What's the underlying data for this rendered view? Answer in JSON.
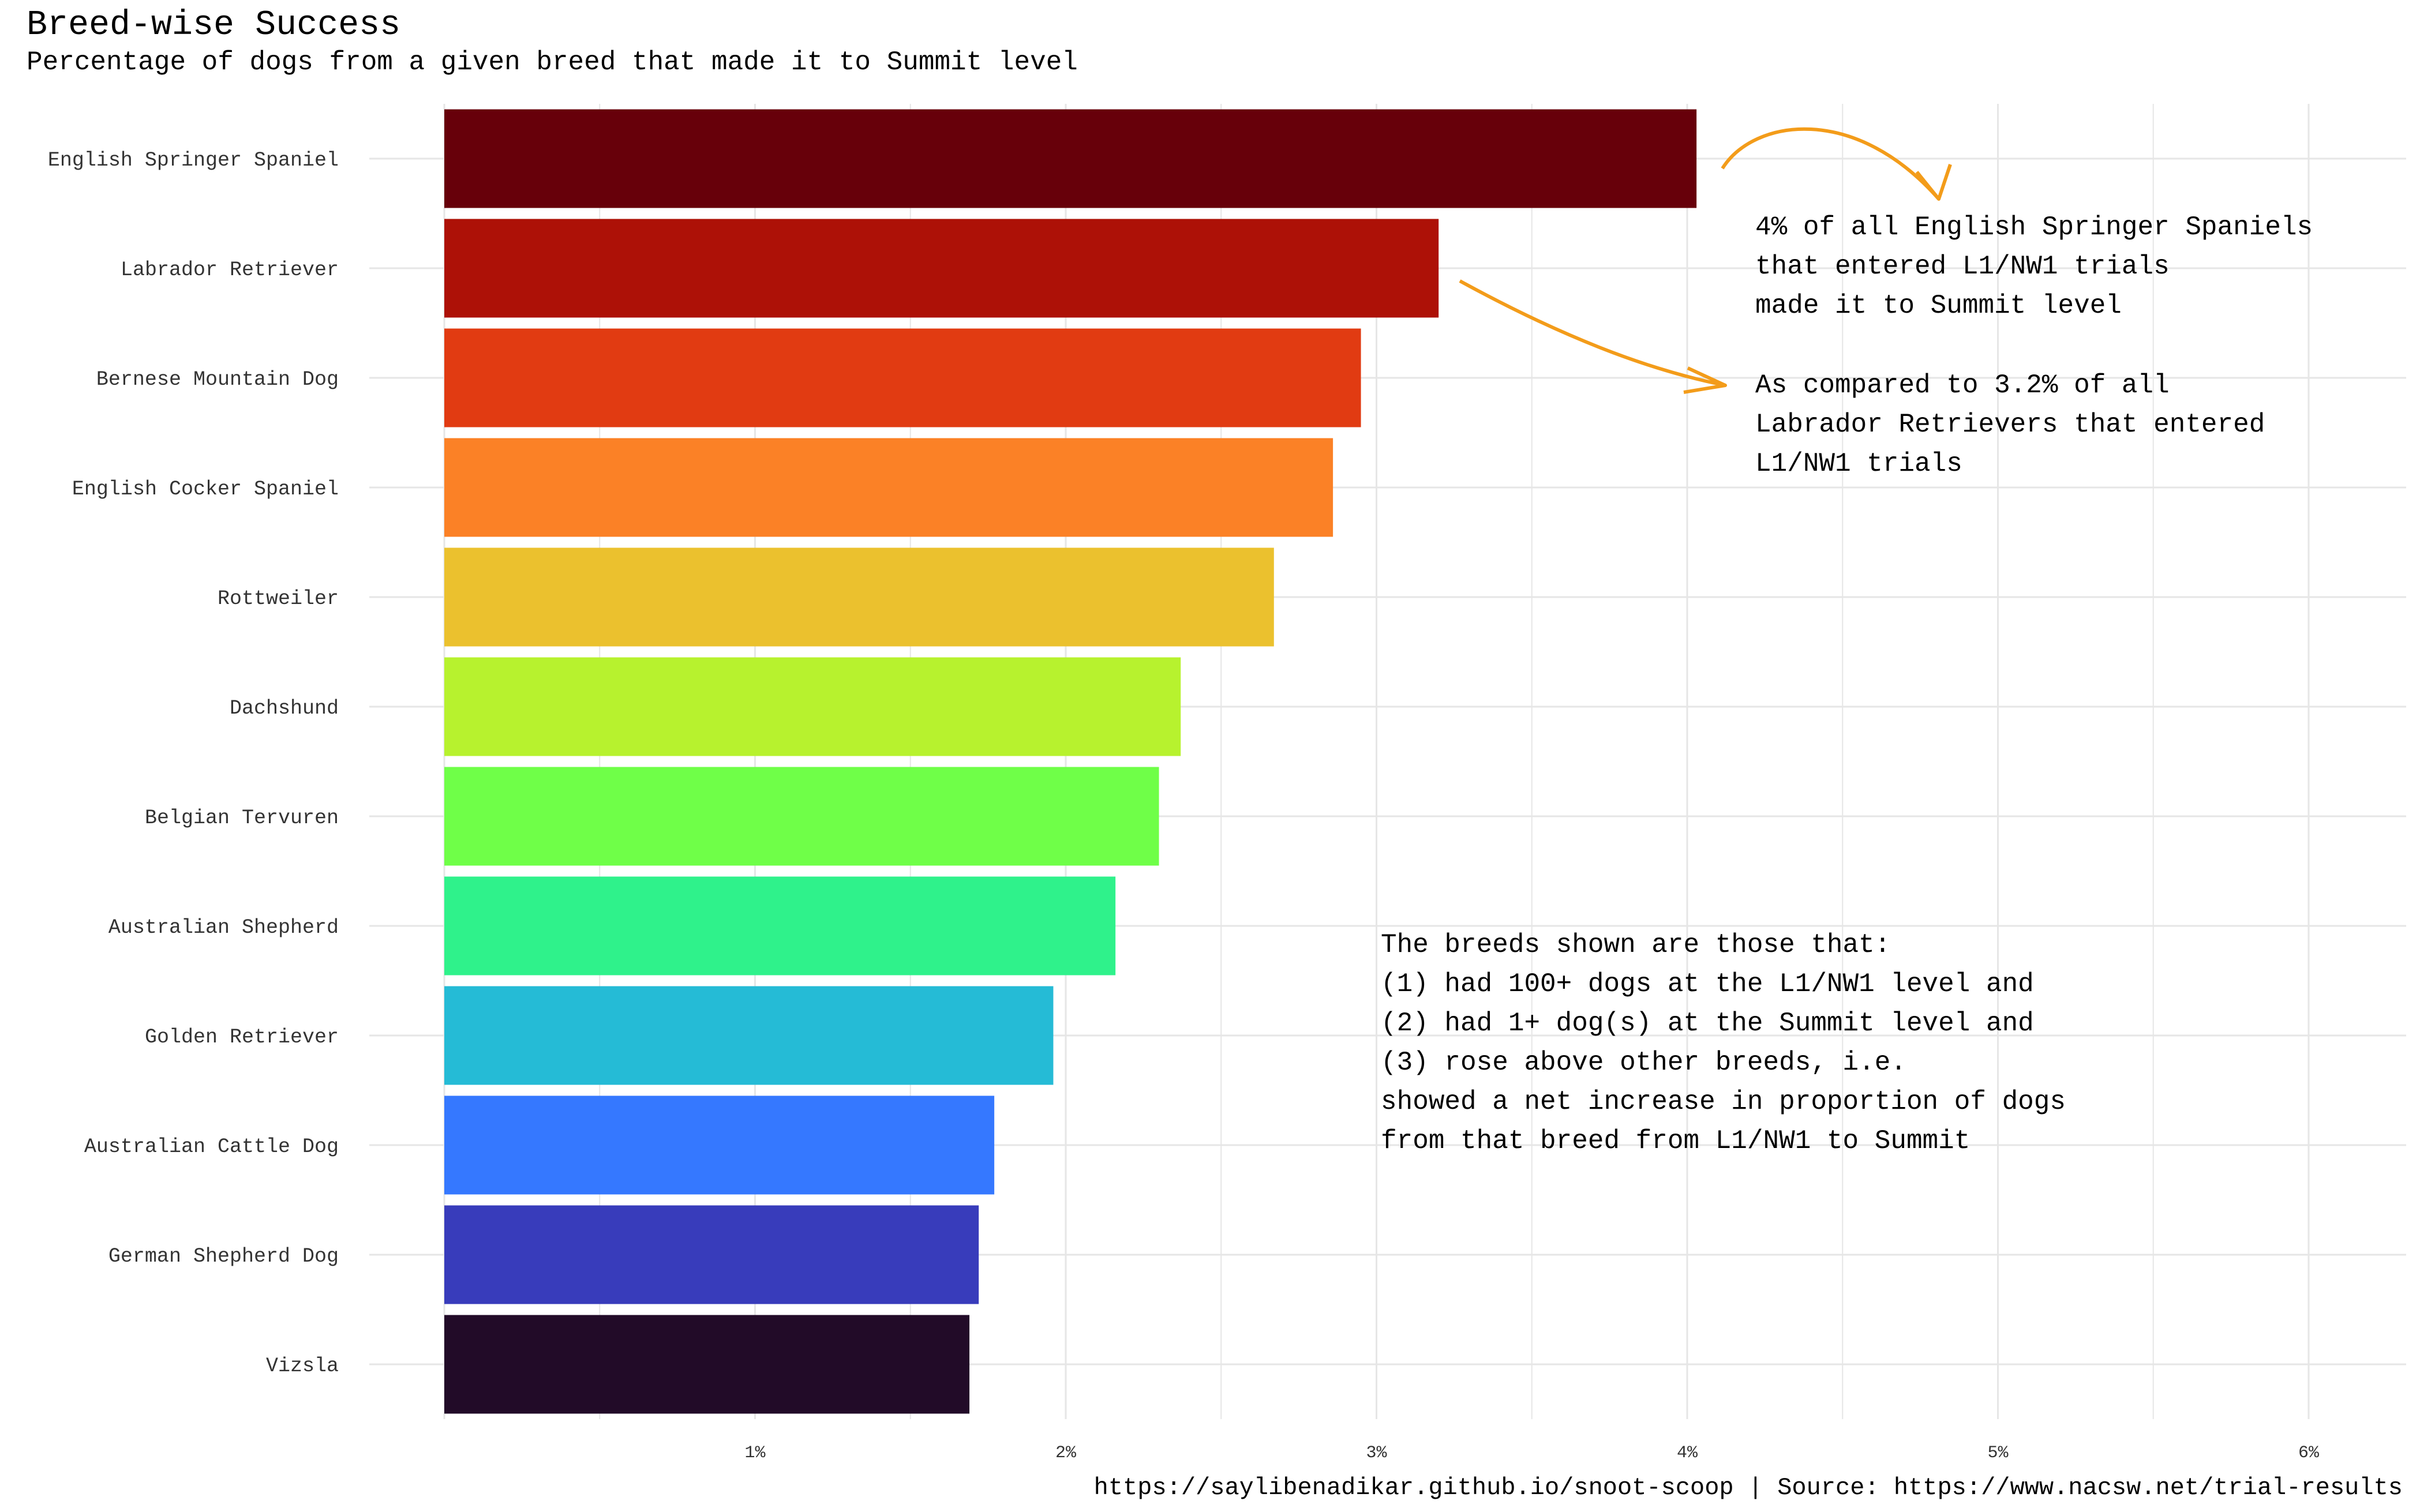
{
  "chart_data": {
    "type": "bar",
    "orientation": "horizontal",
    "title": "Breed-wise Success",
    "subtitle": "Percentage of dogs from a given breed that made it to Summit level",
    "caption": "https://saylibenadikar.github.io/snoot-scoop | Source: https://www.nacsw.net/trial-results",
    "categories": [
      "English Springer Spaniel",
      "Labrador Retriever",
      "Bernese Mountain Dog",
      "English Cocker Spaniel",
      "Rottweiler",
      "Dachshund",
      "Belgian Tervuren",
      "Australian Shepherd",
      "Golden Retriever",
      "Australian Cattle Dog",
      "German Shepherd Dog",
      "Vizsla"
    ],
    "values": [
      4.03,
      3.2,
      2.95,
      2.86,
      2.67,
      2.37,
      2.3,
      2.16,
      1.96,
      1.77,
      1.72,
      1.69
    ],
    "colors": [
      "#67000a",
      "#ad1107",
      "#e13b12",
      "#fb8126",
      "#ebc12e",
      "#b7f22e",
      "#6fff48",
      "#2ff28b",
      "#25bbd6",
      "#3578ff",
      "#383cbb",
      "#220b28"
    ],
    "xlim": [
      0,
      6.3
    ],
    "xticks": [
      1,
      2,
      3,
      4,
      5,
      6
    ],
    "xtick_labels": [
      "1%",
      "2%",
      "3%",
      "4%",
      "5%",
      "6%"
    ],
    "grid": true,
    "annotations": [
      "4% of all English Springer Spaniels",
      "that entered L1/NW1 trials",
      "made it to Summit level",
      "As compared to 3.2% of all",
      "Labrador Retrievers that entered",
      "L1/NW1 trials"
    ],
    "note": [
      "The breeds shown are those that:",
      "(1) had 100+ dogs at the L1/NW1 level and",
      "(2) had 1+ dog(s) at the Summit level and",
      "(3) rose above other breeds, i.e.",
      "    showed a net increase in proportion of dogs",
      "    from that breed from L1/NW1 to Summit"
    ],
    "arrow_color": "#f39c1a"
  }
}
